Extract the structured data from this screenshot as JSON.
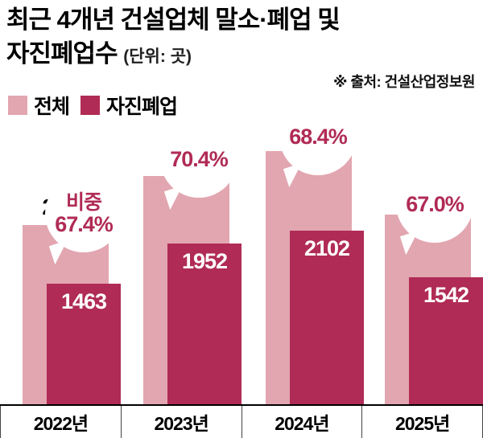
{
  "title": {
    "line1": "최근 4개년 건설업체 말소·폐업 및",
    "line2": "자진폐업수",
    "unit": "(단위: 곳)"
  },
  "source": "※ 출처: 건설산업정보원",
  "legend": [
    {
      "label": "전체",
      "color": "#e2a6b0"
    },
    {
      "label": "자진폐업",
      "color": "#b02b55"
    }
  ],
  "colors": {
    "total": "#e2a6b0",
    "voluntary": "#b02b55",
    "bubble_text": "#b02b55",
    "axis": "#000000"
  },
  "chart_data": {
    "type": "bar",
    "title": "최근 4개년 건설업체 말소·폐업 및 자진폐업수",
    "unit": "곳",
    "categories": [
      "2022년",
      "2023년",
      "2024년",
      "2025년"
    ],
    "series": [
      {
        "name": "전체",
        "values": [
          2171,
          2771,
          3072,
          2301
        ]
      },
      {
        "name": "자진폐업",
        "values": [
          1463,
          1952,
          2102,
          1542
        ]
      }
    ],
    "callouts": [
      {
        "prefix": "비중",
        "value": "67.4%"
      },
      {
        "prefix": "",
        "value": "70.4%"
      },
      {
        "prefix": "",
        "value": "68.4%"
      },
      {
        "prefix": "",
        "value": "67.0%"
      }
    ],
    "ylim": [
      0,
      3072
    ],
    "grid": false,
    "legend_position": "top-left"
  }
}
